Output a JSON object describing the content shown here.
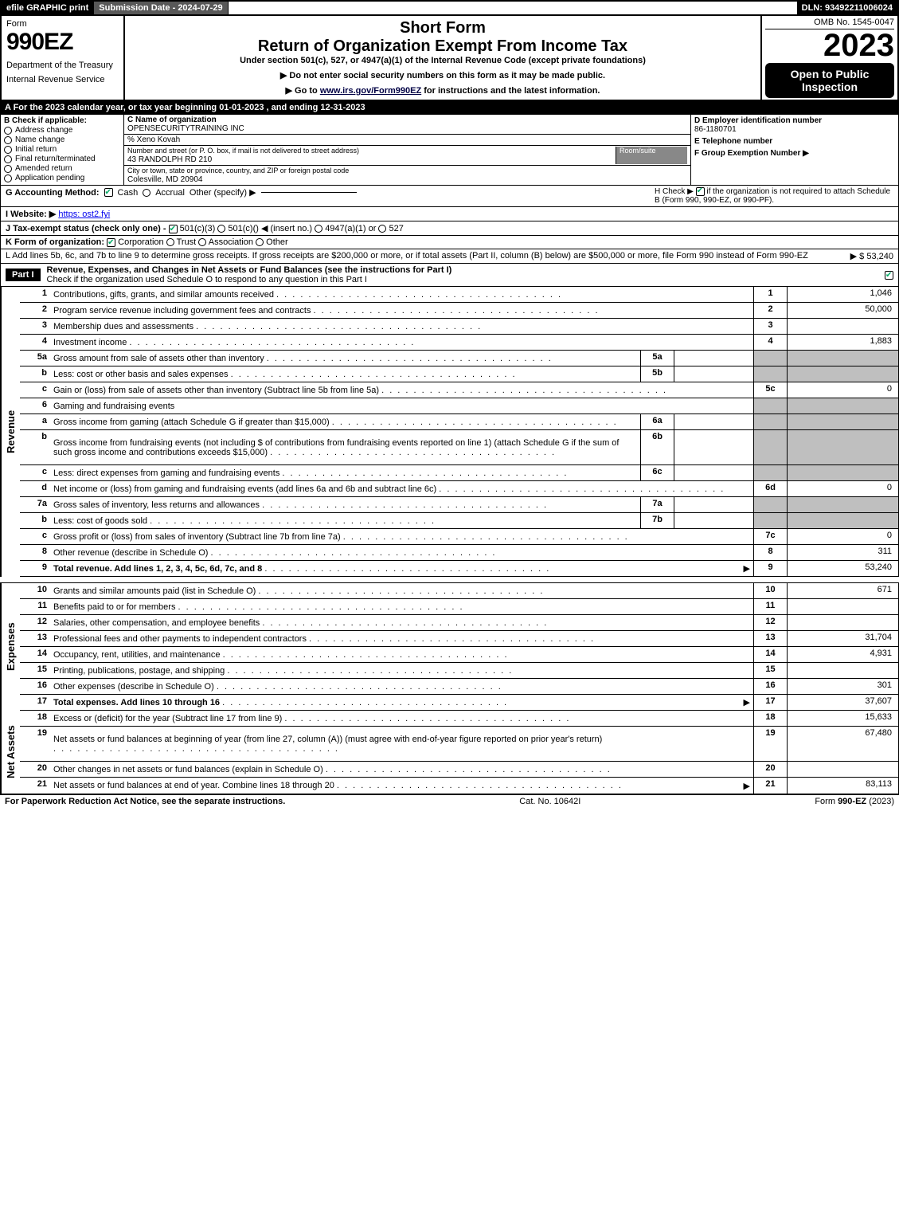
{
  "topbar": {
    "efile": "efile GRAPHIC print",
    "subdate_label": "Submission Date - 2024-07-29",
    "dln": "DLN: 93492211006024"
  },
  "header": {
    "form_word": "Form",
    "form_num": "990EZ",
    "dept": "Department of the Treasury",
    "irs": "Internal Revenue Service",
    "short_form": "Short Form",
    "return_title": "Return of Organization Exempt From Income Tax",
    "under": "Under section 501(c), 527, or 4947(a)(1) of the Internal Revenue Code (except private foundations)",
    "note1": "▶ Do not enter social security numbers on this form as it may be made public.",
    "note2_pre": "▶ Go to ",
    "note2_link": "www.irs.gov/Form990EZ",
    "note2_post": " for instructions and the latest information.",
    "omb": "OMB No. 1545-0047",
    "year": "2023",
    "open": "Open to Public Inspection"
  },
  "row_a": "A  For the 2023 calendar year, or tax year beginning 01-01-2023 , and ending 12-31-2023",
  "col_b": {
    "label": "B  Check if applicable:",
    "items": [
      "Address change",
      "Name change",
      "Initial return",
      "Final return/terminated",
      "Amended return",
      "Application pending"
    ]
  },
  "col_c": {
    "name_label": "C Name of organization",
    "name": "OPENSECURITYTRAINING INC",
    "care_of": "% Xeno Kovah",
    "street_label": "Number and street (or P. O. box, if mail is not delivered to street address)",
    "room_label": "Room/suite",
    "street": "43 RANDOLPH RD 210",
    "city_label": "City or town, state or province, country, and ZIP or foreign postal code",
    "city": "Colesville, MD  20904"
  },
  "col_d": {
    "ein_label": "D Employer identification number",
    "ein": "86-1180701",
    "tel_label": "E Telephone number",
    "tel": "",
    "group_label": "F Group Exemption Number   ▶",
    "group": ""
  },
  "g": {
    "label": "G Accounting Method:",
    "cash": "Cash",
    "accrual": "Accrual",
    "other": "Other (specify) ▶"
  },
  "h": {
    "label": "H  Check ▶",
    "desc": "if the organization is not required to attach Schedule B (Form 990, 990-EZ, or 990-PF)."
  },
  "i": {
    "label": "I Website: ▶",
    "value": "https: ost2.fyi"
  },
  "j": {
    "label": "J Tax-exempt status (check only one) -",
    "opt1": "501(c)(3)",
    "opt2_pre": "501(c)(",
    "opt2_post": ") ◀ (insert no.)",
    "opt3": "4947(a)(1) or",
    "opt4": "527"
  },
  "k": {
    "label": "K Form of organization:",
    "opts": [
      "Corporation",
      "Trust",
      "Association",
      "Other"
    ]
  },
  "l": {
    "text": "L Add lines 5b, 6c, and 7b to line 9 to determine gross receipts. If gross receipts are $200,000 or more, or if total assets (Part II, column (B) below) are $500,000 or more, file Form 990 instead of Form 990-EZ",
    "amount": "▶ $ 53,240"
  },
  "part1": {
    "title": "Part I",
    "desc": "Revenue, Expenses, and Changes in Net Assets or Fund Balances (see the instructions for Part I)",
    "check_note": "Check if the organization used Schedule O to respond to any question in this Part I"
  },
  "revenue": {
    "label": "Revenue",
    "lines": [
      {
        "ln": "1",
        "desc": "Contributions, gifts, grants, and similar amounts received",
        "num": "1",
        "val": "1,046"
      },
      {
        "ln": "2",
        "desc": "Program service revenue including government fees and contracts",
        "num": "2",
        "val": "50,000"
      },
      {
        "ln": "3",
        "desc": "Membership dues and assessments",
        "num": "3",
        "val": ""
      },
      {
        "ln": "4",
        "desc": "Investment income",
        "num": "4",
        "val": "1,883"
      },
      {
        "ln": "5a",
        "desc": "Gross amount from sale of assets other than inventory",
        "sub": "5a"
      },
      {
        "ln": "b",
        "desc": "Less: cost or other basis and sales expenses",
        "sub": "5b"
      },
      {
        "ln": "c",
        "desc": "Gain or (loss) from sale of assets other than inventory (Subtract line 5b from line 5a)",
        "num": "5c",
        "val": "0"
      },
      {
        "ln": "6",
        "desc": "Gaming and fundraising events",
        "header": true
      },
      {
        "ln": "a",
        "desc": "Gross income from gaming (attach Schedule G if greater than $15,000)",
        "sub": "6a"
      },
      {
        "ln": "b",
        "desc": "Gross income from fundraising events (not including $                   of contributions from fundraising events reported on line 1) (attach Schedule G if the sum of such gross income and contributions exceeds $15,000)",
        "sub": "6b",
        "tall": true
      },
      {
        "ln": "c",
        "desc": "Less: direct expenses from gaming and fundraising events",
        "sub": "6c"
      },
      {
        "ln": "d",
        "desc": "Net income or (loss) from gaming and fundraising events (add lines 6a and 6b and subtract line 6c)",
        "num": "6d",
        "val": "0"
      },
      {
        "ln": "7a",
        "desc": "Gross sales of inventory, less returns and allowances",
        "sub": "7a"
      },
      {
        "ln": "b",
        "desc": "Less: cost of goods sold",
        "sub": "7b"
      },
      {
        "ln": "c",
        "desc": "Gross profit or (loss) from sales of inventory (Subtract line 7b from line 7a)",
        "num": "7c",
        "val": "0"
      },
      {
        "ln": "8",
        "desc": "Other revenue (describe in Schedule O)",
        "num": "8",
        "val": "311"
      },
      {
        "ln": "9",
        "desc": "Total revenue. Add lines 1, 2, 3, 4, 5c, 6d, 7c, and 8",
        "num": "9",
        "val": "53,240",
        "bold": true,
        "arrow": true
      }
    ]
  },
  "expenses": {
    "label": "Expenses",
    "lines": [
      {
        "ln": "10",
        "desc": "Grants and similar amounts paid (list in Schedule O)",
        "num": "10",
        "val": "671"
      },
      {
        "ln": "11",
        "desc": "Benefits paid to or for members",
        "num": "11",
        "val": ""
      },
      {
        "ln": "12",
        "desc": "Salaries, other compensation, and employee benefits",
        "num": "12",
        "val": ""
      },
      {
        "ln": "13",
        "desc": "Professional fees and other payments to independent contractors",
        "num": "13",
        "val": "31,704"
      },
      {
        "ln": "14",
        "desc": "Occupancy, rent, utilities, and maintenance",
        "num": "14",
        "val": "4,931"
      },
      {
        "ln": "15",
        "desc": "Printing, publications, postage, and shipping",
        "num": "15",
        "val": ""
      },
      {
        "ln": "16",
        "desc": "Other expenses (describe in Schedule O)",
        "num": "16",
        "val": "301"
      },
      {
        "ln": "17",
        "desc": "Total expenses. Add lines 10 through 16",
        "num": "17",
        "val": "37,607",
        "bold": true,
        "arrow": true
      }
    ]
  },
  "netassets": {
    "label": "Net Assets",
    "lines": [
      {
        "ln": "18",
        "desc": "Excess or (deficit) for the year (Subtract line 17 from line 9)",
        "num": "18",
        "val": "15,633"
      },
      {
        "ln": "19",
        "desc": "Net assets or fund balances at beginning of year (from line 27, column (A)) (must agree with end-of-year figure reported on prior year's return)",
        "num": "19",
        "val": "67,480",
        "tall": true
      },
      {
        "ln": "20",
        "desc": "Other changes in net assets or fund balances (explain in Schedule O)",
        "num": "20",
        "val": ""
      },
      {
        "ln": "21",
        "desc": "Net assets or fund balances at end of year. Combine lines 18 through 20",
        "num": "21",
        "val": "83,113",
        "arrow": true
      }
    ]
  },
  "footer": {
    "left": "For Paperwork Reduction Act Notice, see the separate instructions.",
    "center": "Cat. No. 10642I",
    "right": "Form 990-EZ (2023)"
  }
}
